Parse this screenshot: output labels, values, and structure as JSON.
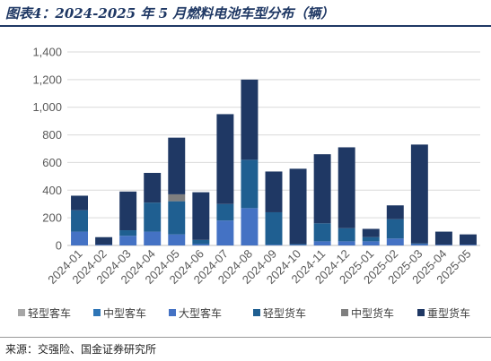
{
  "header": {
    "title": "图表4：2024-2025 年 5 月燃料电池车型分布（辆）"
  },
  "footer": {
    "source": "来源：交强险、国金证券研究所"
  },
  "chart_data": {
    "type": "bar",
    "stacked": true,
    "categories": [
      "2024-01",
      "2024-02",
      "2024-03",
      "2024-04",
      "2024-05",
      "2024-06",
      "2024-07",
      "2024-08",
      "2024-09",
      "2024-10",
      "2024-11",
      "2024-12",
      "2025-01",
      "2025-02",
      "2025-03",
      "2025-04",
      "2025-05"
    ],
    "series": [
      {
        "name": "轻型客车",
        "color": "#a6a6a6",
        "values": [
          0,
          0,
          0,
          0,
          0,
          0,
          0,
          0,
          0,
          0,
          0,
          0,
          0,
          0,
          0,
          0,
          0
        ]
      },
      {
        "name": "中型客车",
        "color": "#2e75b6",
        "values": [
          0,
          0,
          0,
          0,
          0,
          0,
          0,
          0,
          0,
          0,
          0,
          0,
          0,
          0,
          0,
          0,
          0
        ]
      },
      {
        "name": "大型客车",
        "color": "#4472c4",
        "values": [
          100,
          5,
          70,
          100,
          80,
          10,
          180,
          270,
          5,
          5,
          30,
          30,
          30,
          50,
          10,
          5,
          5
        ]
      },
      {
        "name": "轻型货车",
        "color": "#1f5f91",
        "values": [
          155,
          0,
          40,
          210,
          240,
          30,
          120,
          350,
          235,
          5,
          130,
          95,
          30,
          140,
          5,
          0,
          0
        ]
      },
      {
        "name": "中型货车",
        "color": "#7f7f7f",
        "values": [
          0,
          0,
          0,
          0,
          50,
          0,
          0,
          0,
          0,
          0,
          0,
          0,
          0,
          0,
          0,
          0,
          0
        ]
      },
      {
        "name": "重型货车",
        "color": "#1f3864",
        "values": [
          105,
          55,
          280,
          215,
          410,
          345,
          650,
          580,
          295,
          545,
          500,
          585,
          60,
          100,
          715,
          95,
          75
        ]
      }
    ],
    "xlabel": "",
    "ylabel": "",
    "ylim": [
      0,
      1400
    ],
    "yticks": [
      0,
      200,
      400,
      600,
      800,
      1000,
      1200,
      1400
    ],
    "ytick_labels": [
      "0",
      "200",
      "400",
      "600",
      "800",
      "1,000",
      "1,200",
      "1,400"
    ],
    "grid": true,
    "legend_position": "bottom"
  }
}
